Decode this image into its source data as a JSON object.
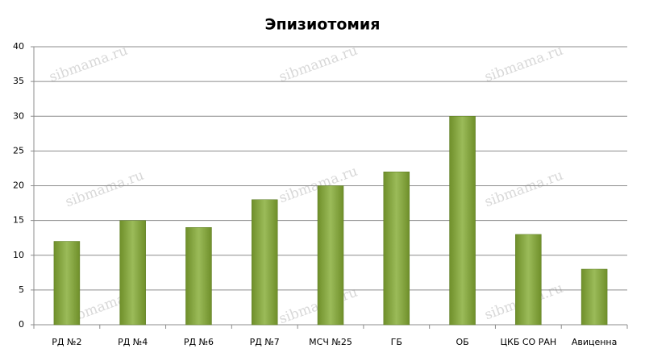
{
  "chart_data": {
    "type": "bar",
    "title": "Эпизиотомия",
    "watermark": "sibmama.ru",
    "categories": [
      "РД №2",
      "РД №4",
      "РД №6",
      "РД №7",
      "МСЧ №25",
      "ГБ",
      "ОБ",
      "ЦКБ СО РАН",
      "Авиценна"
    ],
    "values": [
      12,
      15,
      14,
      18,
      20,
      22,
      30,
      13,
      8
    ],
    "color": "#9bbb59",
    "ylim": [
      0,
      40
    ],
    "yticks": [
      0,
      5,
      10,
      15,
      20,
      25,
      30,
      35,
      40
    ],
    "grid": true
  }
}
